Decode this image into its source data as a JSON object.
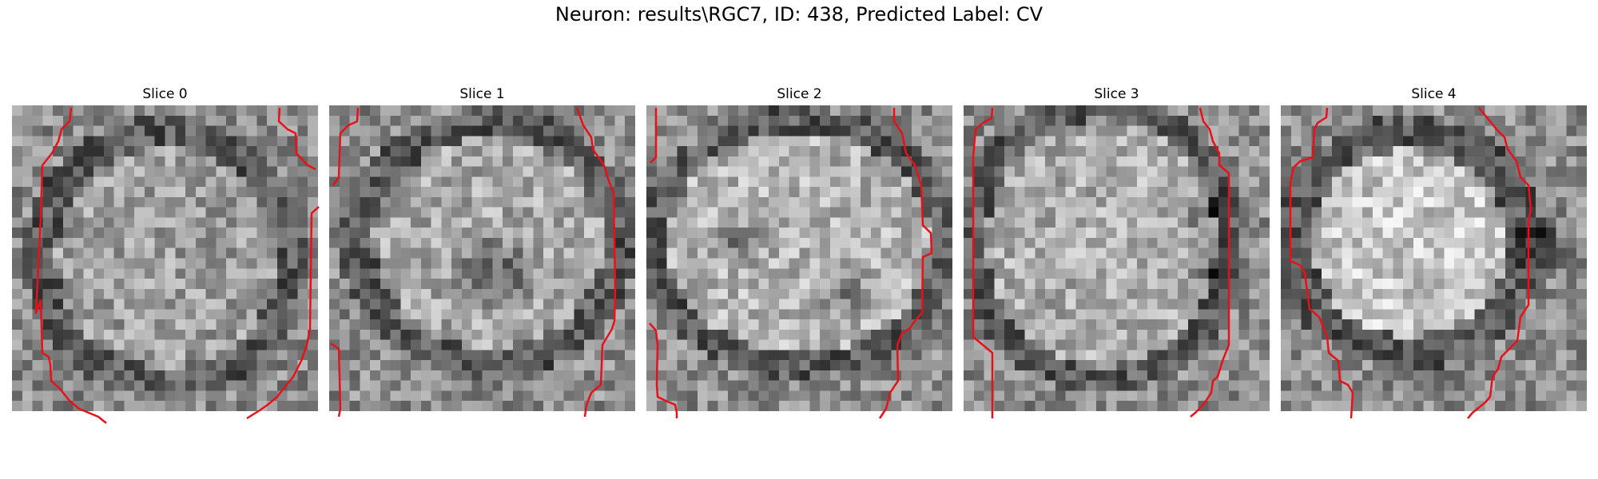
{
  "figure": {
    "title": "Neuron: results\\RGC7, ID: 438, Predicted Label: CV"
  },
  "slices": [
    {
      "label": "Slice 0"
    },
    {
      "label": "Slice 1"
    },
    {
      "label": "Slice 2"
    },
    {
      "label": "Slice 3"
    },
    {
      "label": "Slice 4"
    }
  ],
  "colors": {
    "contour": "#e8111a",
    "background": "#ffffff"
  }
}
